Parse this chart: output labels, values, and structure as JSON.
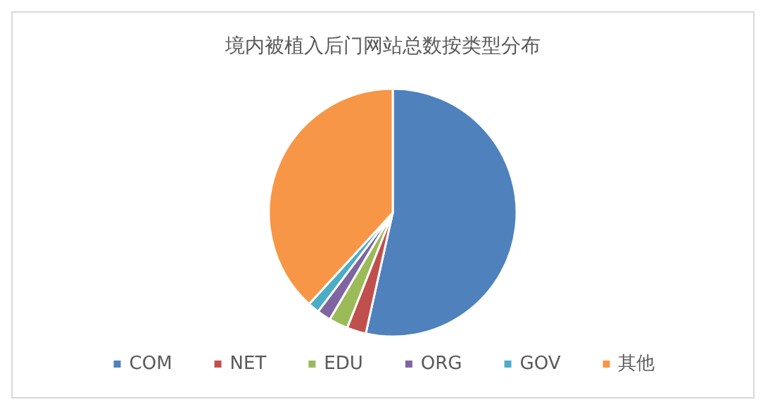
{
  "chart_data": {
    "type": "pie",
    "title": "境内被植入后门网站总数按类型分布",
    "categories": [
      "COM",
      "NET",
      "EDU",
      "ORG",
      "GOV",
      "其他"
    ],
    "values": [
      53.5,
      2.5,
      2.5,
      1.8,
      1.5,
      38.2
    ],
    "colors": [
      "#4f81bd",
      "#c0504d",
      "#9bbb59",
      "#8064a2",
      "#4bacc6",
      "#f79646"
    ],
    "legend": "bottom"
  }
}
